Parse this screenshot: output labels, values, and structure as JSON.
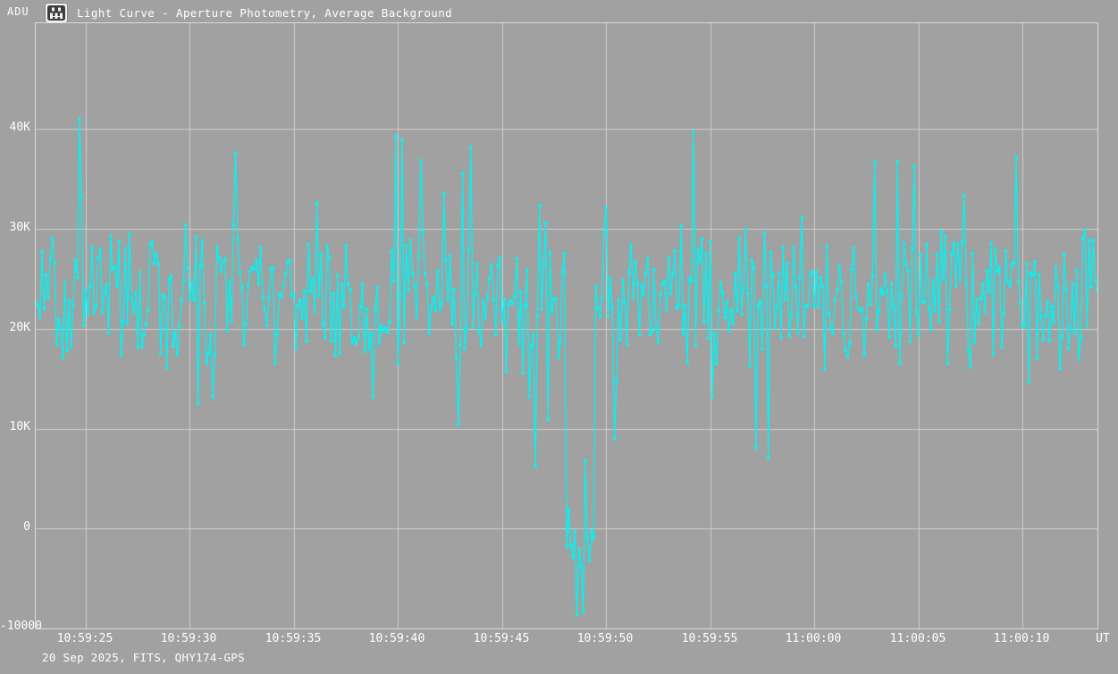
{
  "header": {
    "app_icon": "tangra-app-icon"
  },
  "footer": {
    "recording_info": "20 Sep 2025, FITS, QHY174-GPS"
  },
  "chart_data": {
    "type": "scatter",
    "subtype": "light-curve, connected points with square markers",
    "title": "Light Curve - Aperture Photometry, Average Background",
    "ylabel": "ADU",
    "xlabel": "UT",
    "ylim": [
      -10000,
      50600
    ],
    "grid": true,
    "legend": "none",
    "y_ticks": [
      {
        "label": "40K",
        "value": 40000
      },
      {
        "label": "30K",
        "value": 30000
      },
      {
        "label": "20K",
        "value": 20000
      },
      {
        "label": "10K",
        "value": 10000
      },
      {
        "label": "0",
        "value": 0
      },
      {
        "label": "-10000",
        "value": -10000
      }
    ],
    "x_start_time": "10:59:22.6",
    "x_end_time": "11:00:13.6",
    "x_span_seconds": 51,
    "x_ticks": [
      {
        "label": "10:59:25",
        "t": 2.4
      },
      {
        "label": "10:59:30",
        "t": 7.4
      },
      {
        "label": "10:59:35",
        "t": 12.4
      },
      {
        "label": "10:59:40",
        "t": 17.4
      },
      {
        "label": "10:59:45",
        "t": 22.4
      },
      {
        "label": "10:59:50",
        "t": 27.4
      },
      {
        "label": "10:59:55",
        "t": 32.4
      },
      {
        "label": "11:00:00",
        "t": 37.4
      },
      {
        "label": "11:00:05",
        "t": 42.4
      },
      {
        "label": "11:00:10",
        "t": 47.4
      }
    ],
    "colors": {
      "series": "#00F6F6",
      "background": "#A1A1A1",
      "grid": "#CFCFCF",
      "border": "#D9D9D9",
      "text": "#FFFFFF"
    },
    "sample_interval_s": 0.1,
    "points_note": "~510 samples at 10 fps; individual values unreadable noise, reconstructed from measured band statistics plus the notable points below",
    "baseline": {
      "mean": 23000,
      "spread": 8500,
      "spike_prob": 0.03,
      "spike_extra": [
        4000,
        12000
      ],
      "low_prob": 0.028,
      "low_extra": [
        4000,
        11000
      ],
      "clamp": [
        13200,
        41200
      ]
    },
    "occultation": {
      "t_start": 25.5,
      "t_end": 26.9,
      "time_utc": "10:59:48.0 - 10:59:49.4",
      "mean": -1300,
      "spread": 4800,
      "clamp": [
        -8600,
        6800
      ],
      "depth_note": "star flux drops from ~23000 ADU baseline to ~0 (scatter -8600..+6800) for ~1.4 s"
    },
    "seed": 20250920,
    "notable_points": [
      {
        "t": 2.1,
        "v": 41000
      },
      {
        "t": 7.8,
        "v": 12500
      },
      {
        "t": 9.6,
        "v": 37600
      },
      {
        "t": 17.3,
        "v": 39300
      },
      {
        "t": 17.6,
        "v": 38900
      },
      {
        "t": 20.3,
        "v": 10400
      },
      {
        "t": 20.9,
        "v": 38200
      },
      {
        "t": 24.0,
        "v": 6200
      },
      {
        "t": 24.6,
        "v": 10900
      },
      {
        "t": 26.0,
        "v": -8600
      },
      {
        "t": 26.3,
        "v": -8300
      },
      {
        "t": 26.4,
        "v": 6800
      },
      {
        "t": 27.8,
        "v": 9000
      },
      {
        "t": 31.6,
        "v": 39700
      },
      {
        "t": 34.6,
        "v": 8100
      },
      {
        "t": 35.2,
        "v": 7100
      },
      {
        "t": 40.3,
        "v": 36700
      },
      {
        "t": 42.2,
        "v": 36300
      },
      {
        "t": 47.1,
        "v": 37200
      }
    ]
  }
}
